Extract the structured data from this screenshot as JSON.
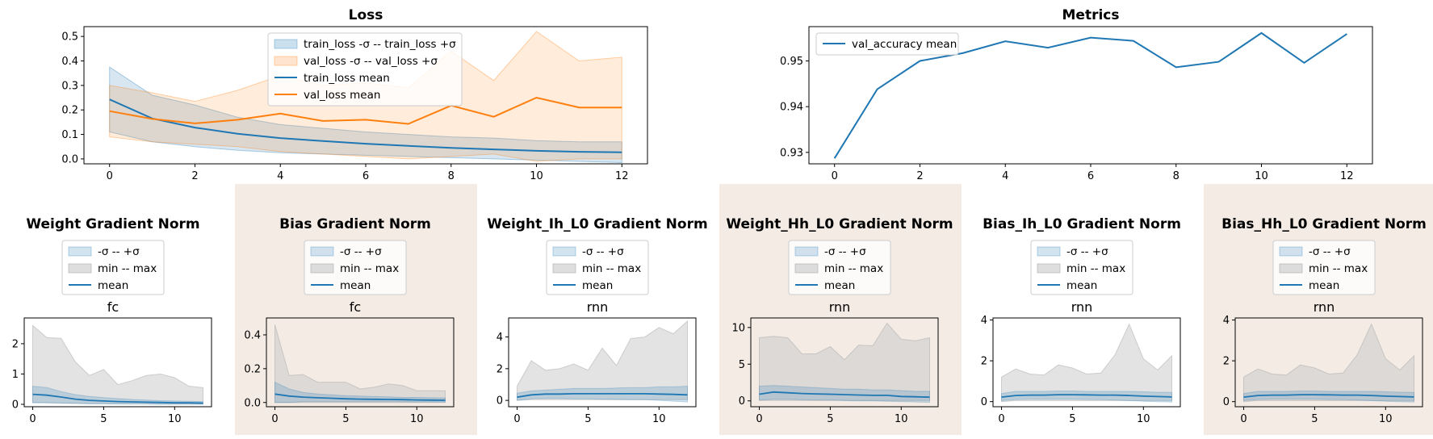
{
  "colors": {
    "blue": "#1f77b4",
    "orange": "#ff7f0e",
    "panel_highlight": "#f3ebe4",
    "band_gray": "#c8c8c8"
  },
  "top_charts": [
    {
      "type": "line",
      "title": "Loss",
      "x": [
        0,
        1,
        2,
        3,
        4,
        5,
        6,
        7,
        8,
        9,
        10,
        11,
        12
      ],
      "xlim": [
        -0.6,
        12.6
      ],
      "ylim": [
        -0.02,
        0.54
      ],
      "xticks": [
        0,
        2,
        4,
        6,
        8,
        10,
        12
      ],
      "yticks": [
        0.0,
        0.1,
        0.2,
        0.3,
        0.4,
        0.5
      ],
      "yfmt": 1,
      "legend_position": "upper-center",
      "bands": [
        {
          "name": "train_loss -σ -- train_loss +σ",
          "color": "#1f77b4",
          "opacity": 0.18,
          "lower": [
            0.11,
            0.07,
            0.05,
            0.035,
            0.025,
            0.02,
            0.015,
            0.01,
            0.005,
            0.0,
            -0.005,
            -0.01,
            -0.015
          ],
          "upper": [
            0.375,
            0.26,
            0.22,
            0.17,
            0.14,
            0.125,
            0.11,
            0.1,
            0.09,
            0.085,
            0.075,
            0.07,
            0.07
          ]
        },
        {
          "name": "val_loss -σ -- val_loss +σ",
          "color": "#ff7f0e",
          "opacity": 0.15,
          "lower": [
            0.09,
            0.07,
            0.06,
            0.05,
            0.03,
            0.02,
            0.01,
            0.0,
            0.01,
            0.02,
            -0.01,
            0.0,
            0.0
          ],
          "upper": [
            0.3,
            0.27,
            0.235,
            0.28,
            0.34,
            0.3,
            0.31,
            0.29,
            0.44,
            0.32,
            0.52,
            0.4,
            0.415
          ]
        }
      ],
      "series": [
        {
          "name": "train_loss mean",
          "color": "#1f77b4",
          "values": [
            0.243,
            0.165,
            0.128,
            0.103,
            0.085,
            0.073,
            0.062,
            0.053,
            0.045,
            0.039,
            0.033,
            0.029,
            0.027
          ]
        },
        {
          "name": "val_loss mean",
          "color": "#ff7f0e",
          "values": [
            0.195,
            0.163,
            0.145,
            0.16,
            0.185,
            0.155,
            0.16,
            0.143,
            0.218,
            0.172,
            0.25,
            0.21,
            0.21
          ]
        }
      ]
    },
    {
      "type": "line",
      "title": "Metrics",
      "x": [
        0,
        1,
        2,
        3,
        4,
        5,
        6,
        7,
        8,
        9,
        10,
        11,
        12
      ],
      "xlim": [
        -0.6,
        12.6
      ],
      "ylim": [
        0.9275,
        0.9575
      ],
      "xticks": [
        0,
        2,
        4,
        6,
        8,
        10,
        12
      ],
      "yticks": [
        0.93,
        0.94,
        0.95
      ],
      "yfmt": 2,
      "legend_position": "upper-left",
      "bands": [],
      "series": [
        {
          "name": "val_accuracy mean",
          "color": "#1f77b4",
          "values": [
            0.9287,
            0.9438,
            0.95,
            0.9517,
            0.9543,
            0.9529,
            0.9551,
            0.9544,
            0.9486,
            0.9498,
            0.9561,
            0.9496,
            0.9559
          ]
        }
      ]
    }
  ],
  "panels": [
    {
      "title": "Weight Gradient Norm",
      "subtitle": "fc",
      "highlight": false,
      "ylim": [
        -0.08,
        2.85
      ],
      "yticks": [
        0,
        1,
        2
      ],
      "max": [
        2.6,
        2.2,
        2.18,
        1.4,
        0.95,
        1.15,
        0.65,
        0.78,
        0.95,
        1.0,
        0.88,
        0.6,
        0.55
      ],
      "min": [
        0.06,
        0.05,
        0.04,
        0.03,
        0.02,
        0.02,
        0.02,
        0.02,
        0.02,
        0.01,
        0.01,
        0.01,
        0.01
      ],
      "mean": [
        0.33,
        0.3,
        0.24,
        0.17,
        0.13,
        0.11,
        0.09,
        0.08,
        0.07,
        0.06,
        0.05,
        0.05,
        0.04
      ],
      "sd_upper": [
        0.6,
        0.55,
        0.42,
        0.32,
        0.26,
        0.22,
        0.19,
        0.16,
        0.14,
        0.12,
        0.11,
        0.1,
        0.09
      ],
      "sd_lower": [
        0.05,
        0.05,
        0.04,
        0.03,
        0.02,
        0.02,
        0.01,
        0.01,
        0.01,
        0.0,
        0.0,
        0.0,
        0.0
      ]
    },
    {
      "title": "Bias Gradient Norm",
      "subtitle": "fc",
      "highlight": true,
      "ylim": [
        -0.025,
        0.5
      ],
      "yticks": [
        0.0,
        0.2,
        0.4
      ],
      "max": [
        0.46,
        0.16,
        0.165,
        0.12,
        0.12,
        0.12,
        0.08,
        0.09,
        0.11,
        0.1,
        0.07,
        0.07,
        0.07
      ],
      "min": [
        0.0,
        0.0,
        0.0,
        0.0,
        0.0,
        0.0,
        0.0,
        0.0,
        0.0,
        0.0,
        0.0,
        0.0,
        0.0
      ],
      "mean": [
        0.05,
        0.038,
        0.032,
        0.028,
        0.025,
        0.022,
        0.02,
        0.019,
        0.018,
        0.017,
        0.015,
        0.014,
        0.013
      ],
      "sd_upper": [
        0.12,
        0.08,
        0.06,
        0.05,
        0.045,
        0.04,
        0.038,
        0.035,
        0.033,
        0.03,
        0.03,
        0.028,
        0.027
      ],
      "sd_lower": [
        0.0,
        0.0,
        0.005,
        0.005,
        0.005,
        0.005,
        0.004,
        0.004,
        0.004,
        0.004,
        0.003,
        0.003,
        0.003
      ]
    },
    {
      "title": "Weight_Ih_L0 Gradient Norm",
      "subtitle": "rnn",
      "highlight": false,
      "ylim": [
        -0.4,
        5.2
      ],
      "yticks": [
        0,
        2,
        4
      ],
      "max": [
        0.9,
        2.5,
        1.9,
        2.0,
        2.3,
        1.9,
        3.3,
        2.2,
        3.9,
        4.0,
        4.6,
        4.2,
        5.0
      ],
      "min": [
        0.0,
        0.05,
        0.05,
        0.05,
        0.05,
        0.05,
        0.05,
        0.05,
        0.05,
        0.05,
        0.05,
        0.05,
        0.05
      ],
      "mean": [
        0.2,
        0.35,
        0.4,
        0.4,
        0.42,
        0.42,
        0.42,
        0.42,
        0.42,
        0.42,
        0.4,
        0.38,
        0.35
      ],
      "sd_upper": [
        0.45,
        0.6,
        0.65,
        0.7,
        0.75,
        0.75,
        0.75,
        0.78,
        0.8,
        0.8,
        0.85,
        0.85,
        0.9
      ],
      "sd_lower": [
        0.0,
        0.1,
        0.12,
        0.12,
        0.1,
        0.1,
        0.08,
        0.06,
        0.05,
        0.05,
        0.0,
        -0.05,
        -0.1
      ]
    },
    {
      "title": "Weight_Hh_L0 Gradient Norm",
      "subtitle": "rnn",
      "highlight": true,
      "ylim": [
        -0.8,
        11.3
      ],
      "yticks": [
        0,
        5,
        10
      ],
      "max": [
        8.6,
        8.8,
        8.6,
        6.4,
        6.4,
        7.4,
        5.6,
        7.6,
        7.5,
        10.6,
        8.4,
        8.2,
        8.6
      ],
      "min": [
        0.05,
        0.05,
        0.05,
        0.05,
        0.05,
        0.05,
        0.05,
        0.05,
        0.05,
        0.05,
        0.05,
        0.05,
        0.05
      ],
      "mean": [
        0.9,
        1.2,
        1.1,
        1.0,
        0.95,
        0.9,
        0.85,
        0.8,
        0.75,
        0.75,
        0.6,
        0.55,
        0.5
      ],
      "sd_upper": [
        2.0,
        2.1,
        2.0,
        1.9,
        1.8,
        1.7,
        1.6,
        1.6,
        1.5,
        1.5,
        1.4,
        1.3,
        1.3
      ],
      "sd_lower": [
        0.1,
        0.2,
        0.2,
        0.15,
        0.1,
        0.1,
        0.05,
        0.0,
        0.0,
        -0.05,
        -0.1,
        -0.15,
        -0.2
      ]
    },
    {
      "title": "Bias_Ih_L0 Gradient Norm",
      "subtitle": "rnn",
      "highlight": false,
      "ylim": [
        -0.25,
        4.1
      ],
      "yticks": [
        0,
        2,
        4
      ],
      "max": [
        1.2,
        1.6,
        1.35,
        1.3,
        1.8,
        1.65,
        1.35,
        1.4,
        2.3,
        3.8,
        2.1,
        1.55,
        2.25
      ],
      "min": [
        0.0,
        0.05,
        0.05,
        0.05,
        0.05,
        0.05,
        0.05,
        0.05,
        0.05,
        0.05,
        0.05,
        0.05,
        0.05
      ],
      "mean": [
        0.22,
        0.3,
        0.32,
        0.32,
        0.34,
        0.34,
        0.33,
        0.32,
        0.32,
        0.3,
        0.27,
        0.25,
        0.23
      ],
      "sd_upper": [
        0.4,
        0.5,
        0.5,
        0.5,
        0.52,
        0.52,
        0.5,
        0.5,
        0.5,
        0.5,
        0.48,
        0.46,
        0.45
      ],
      "sd_lower": [
        0.05,
        0.1,
        0.12,
        0.12,
        0.12,
        0.12,
        0.1,
        0.1,
        0.08,
        0.05,
        0.02,
        0.0,
        -0.02
      ]
    },
    {
      "title": "Bias_Hh_L0 Gradient Norm",
      "subtitle": "rnn",
      "highlight": true,
      "ylim": [
        -0.25,
        4.1
      ],
      "yticks": [
        0,
        2,
        4
      ],
      "max": [
        1.2,
        1.6,
        1.35,
        1.3,
        1.8,
        1.65,
        1.35,
        1.4,
        2.3,
        3.8,
        2.1,
        1.55,
        2.25
      ],
      "min": [
        0.0,
        0.05,
        0.05,
        0.05,
        0.05,
        0.05,
        0.05,
        0.05,
        0.05,
        0.05,
        0.05,
        0.05,
        0.05
      ],
      "mean": [
        0.22,
        0.3,
        0.32,
        0.32,
        0.34,
        0.34,
        0.33,
        0.32,
        0.32,
        0.3,
        0.27,
        0.25,
        0.23
      ],
      "sd_upper": [
        0.4,
        0.5,
        0.5,
        0.5,
        0.52,
        0.52,
        0.5,
        0.5,
        0.5,
        0.5,
        0.48,
        0.46,
        0.45
      ],
      "sd_lower": [
        0.05,
        0.1,
        0.12,
        0.12,
        0.12,
        0.12,
        0.1,
        0.1,
        0.08,
        0.05,
        0.02,
        0.0,
        -0.02
      ]
    }
  ],
  "panel_common": {
    "x": [
      0,
      1,
      2,
      3,
      4,
      5,
      6,
      7,
      8,
      9,
      10,
      11,
      12
    ],
    "xlim": [
      -0.6,
      12.6
    ],
    "xticks": [
      0,
      5,
      10
    ],
    "legend": [
      "-σ -- +σ",
      "min -- max",
      "mean"
    ]
  },
  "chart_data": [
    {
      "type": "line",
      "title": "Loss",
      "x": [
        0,
        1,
        2,
        3,
        4,
        5,
        6,
        7,
        8,
        9,
        10,
        11,
        12
      ],
      "series": [
        {
          "name": "train_loss mean",
          "values": [
            0.243,
            0.165,
            0.128,
            0.103,
            0.085,
            0.073,
            0.062,
            0.053,
            0.045,
            0.039,
            0.033,
            0.029,
            0.027
          ]
        },
        {
          "name": "val_loss mean",
          "values": [
            0.195,
            0.163,
            0.145,
            0.16,
            0.185,
            0.155,
            0.16,
            0.143,
            0.218,
            0.172,
            0.25,
            0.21,
            0.21
          ]
        }
      ]
    },
    {
      "type": "line",
      "title": "Metrics",
      "x": [
        0,
        1,
        2,
        3,
        4,
        5,
        6,
        7,
        8,
        9,
        10,
        11,
        12
      ],
      "series": [
        {
          "name": "val_accuracy mean",
          "values": [
            0.9287,
            0.9438,
            0.95,
            0.9517,
            0.9543,
            0.9529,
            0.9551,
            0.9544,
            0.9486,
            0.9498,
            0.9561,
            0.9496,
            0.9559
          ]
        }
      ]
    },
    {
      "type": "area",
      "title": "Weight Gradient Norm",
      "subtitle": "fc",
      "x": [
        0,
        1,
        2,
        3,
        4,
        5,
        6,
        7,
        8,
        9,
        10,
        11,
        12
      ]
    },
    {
      "type": "area",
      "title": "Bias Gradient Norm",
      "subtitle": "fc",
      "x": [
        0,
        1,
        2,
        3,
        4,
        5,
        6,
        7,
        8,
        9,
        10,
        11,
        12
      ]
    },
    {
      "type": "area",
      "title": "Weight_Ih_L0 Gradient Norm",
      "subtitle": "rnn",
      "x": [
        0,
        1,
        2,
        3,
        4,
        5,
        6,
        7,
        8,
        9,
        10,
        11,
        12
      ]
    },
    {
      "type": "area",
      "title": "Weight_Hh_L0 Gradient Norm",
      "subtitle": "rnn",
      "x": [
        0,
        1,
        2,
        3,
        4,
        5,
        6,
        7,
        8,
        9,
        10,
        11,
        12
      ]
    },
    {
      "type": "area",
      "title": "Bias_Ih_L0 Gradient Norm",
      "subtitle": "rnn",
      "x": [
        0,
        1,
        2,
        3,
        4,
        5,
        6,
        7,
        8,
        9,
        10,
        11,
        12
      ]
    },
    {
      "type": "area",
      "title": "Bias_Hh_L0 Gradient Norm",
      "subtitle": "rnn",
      "x": [
        0,
        1,
        2,
        3,
        4,
        5,
        6,
        7,
        8,
        9,
        10,
        11,
        12
      ]
    }
  ]
}
